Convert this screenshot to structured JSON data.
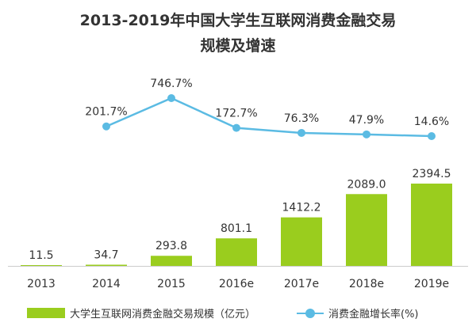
{
  "title_line1": "2013-2019年中国大学生互联网消费金融交易",
  "title_line2": "规模及增速",
  "chart_data": {
    "type": "bar",
    "categories": [
      "2013",
      "2014",
      "2015",
      "2016e",
      "2017e",
      "2018e",
      "2019e"
    ],
    "series": [
      {
        "name": "大学生互联网消费金融交易规模（亿元）",
        "type": "bar",
        "color": "#9acd1e",
        "values": [
          11.5,
          34.7,
          293.8,
          801.1,
          1412.2,
          2089.0,
          2394.5
        ],
        "labels": [
          "11.5",
          "34.7",
          "293.8",
          "801.1",
          "1412.2",
          "2089.0",
          "2394.5"
        ]
      },
      {
        "name": "消费金融增长率(%)",
        "type": "line",
        "color": "#5bbbe3",
        "values": [
          null,
          201.7,
          746.7,
          172.7,
          76.3,
          47.9,
          14.6
        ],
        "labels": [
          "",
          "201.7%",
          "746.7%",
          "172.7%",
          "76.3%",
          "47.9%",
          "14.6%"
        ]
      }
    ],
    "grid": false,
    "legend_position": "bottom"
  },
  "legend": {
    "bar_label": "大学生互联网消费金融交易规模（亿元）",
    "line_label": "消费金融增长率(%)"
  }
}
